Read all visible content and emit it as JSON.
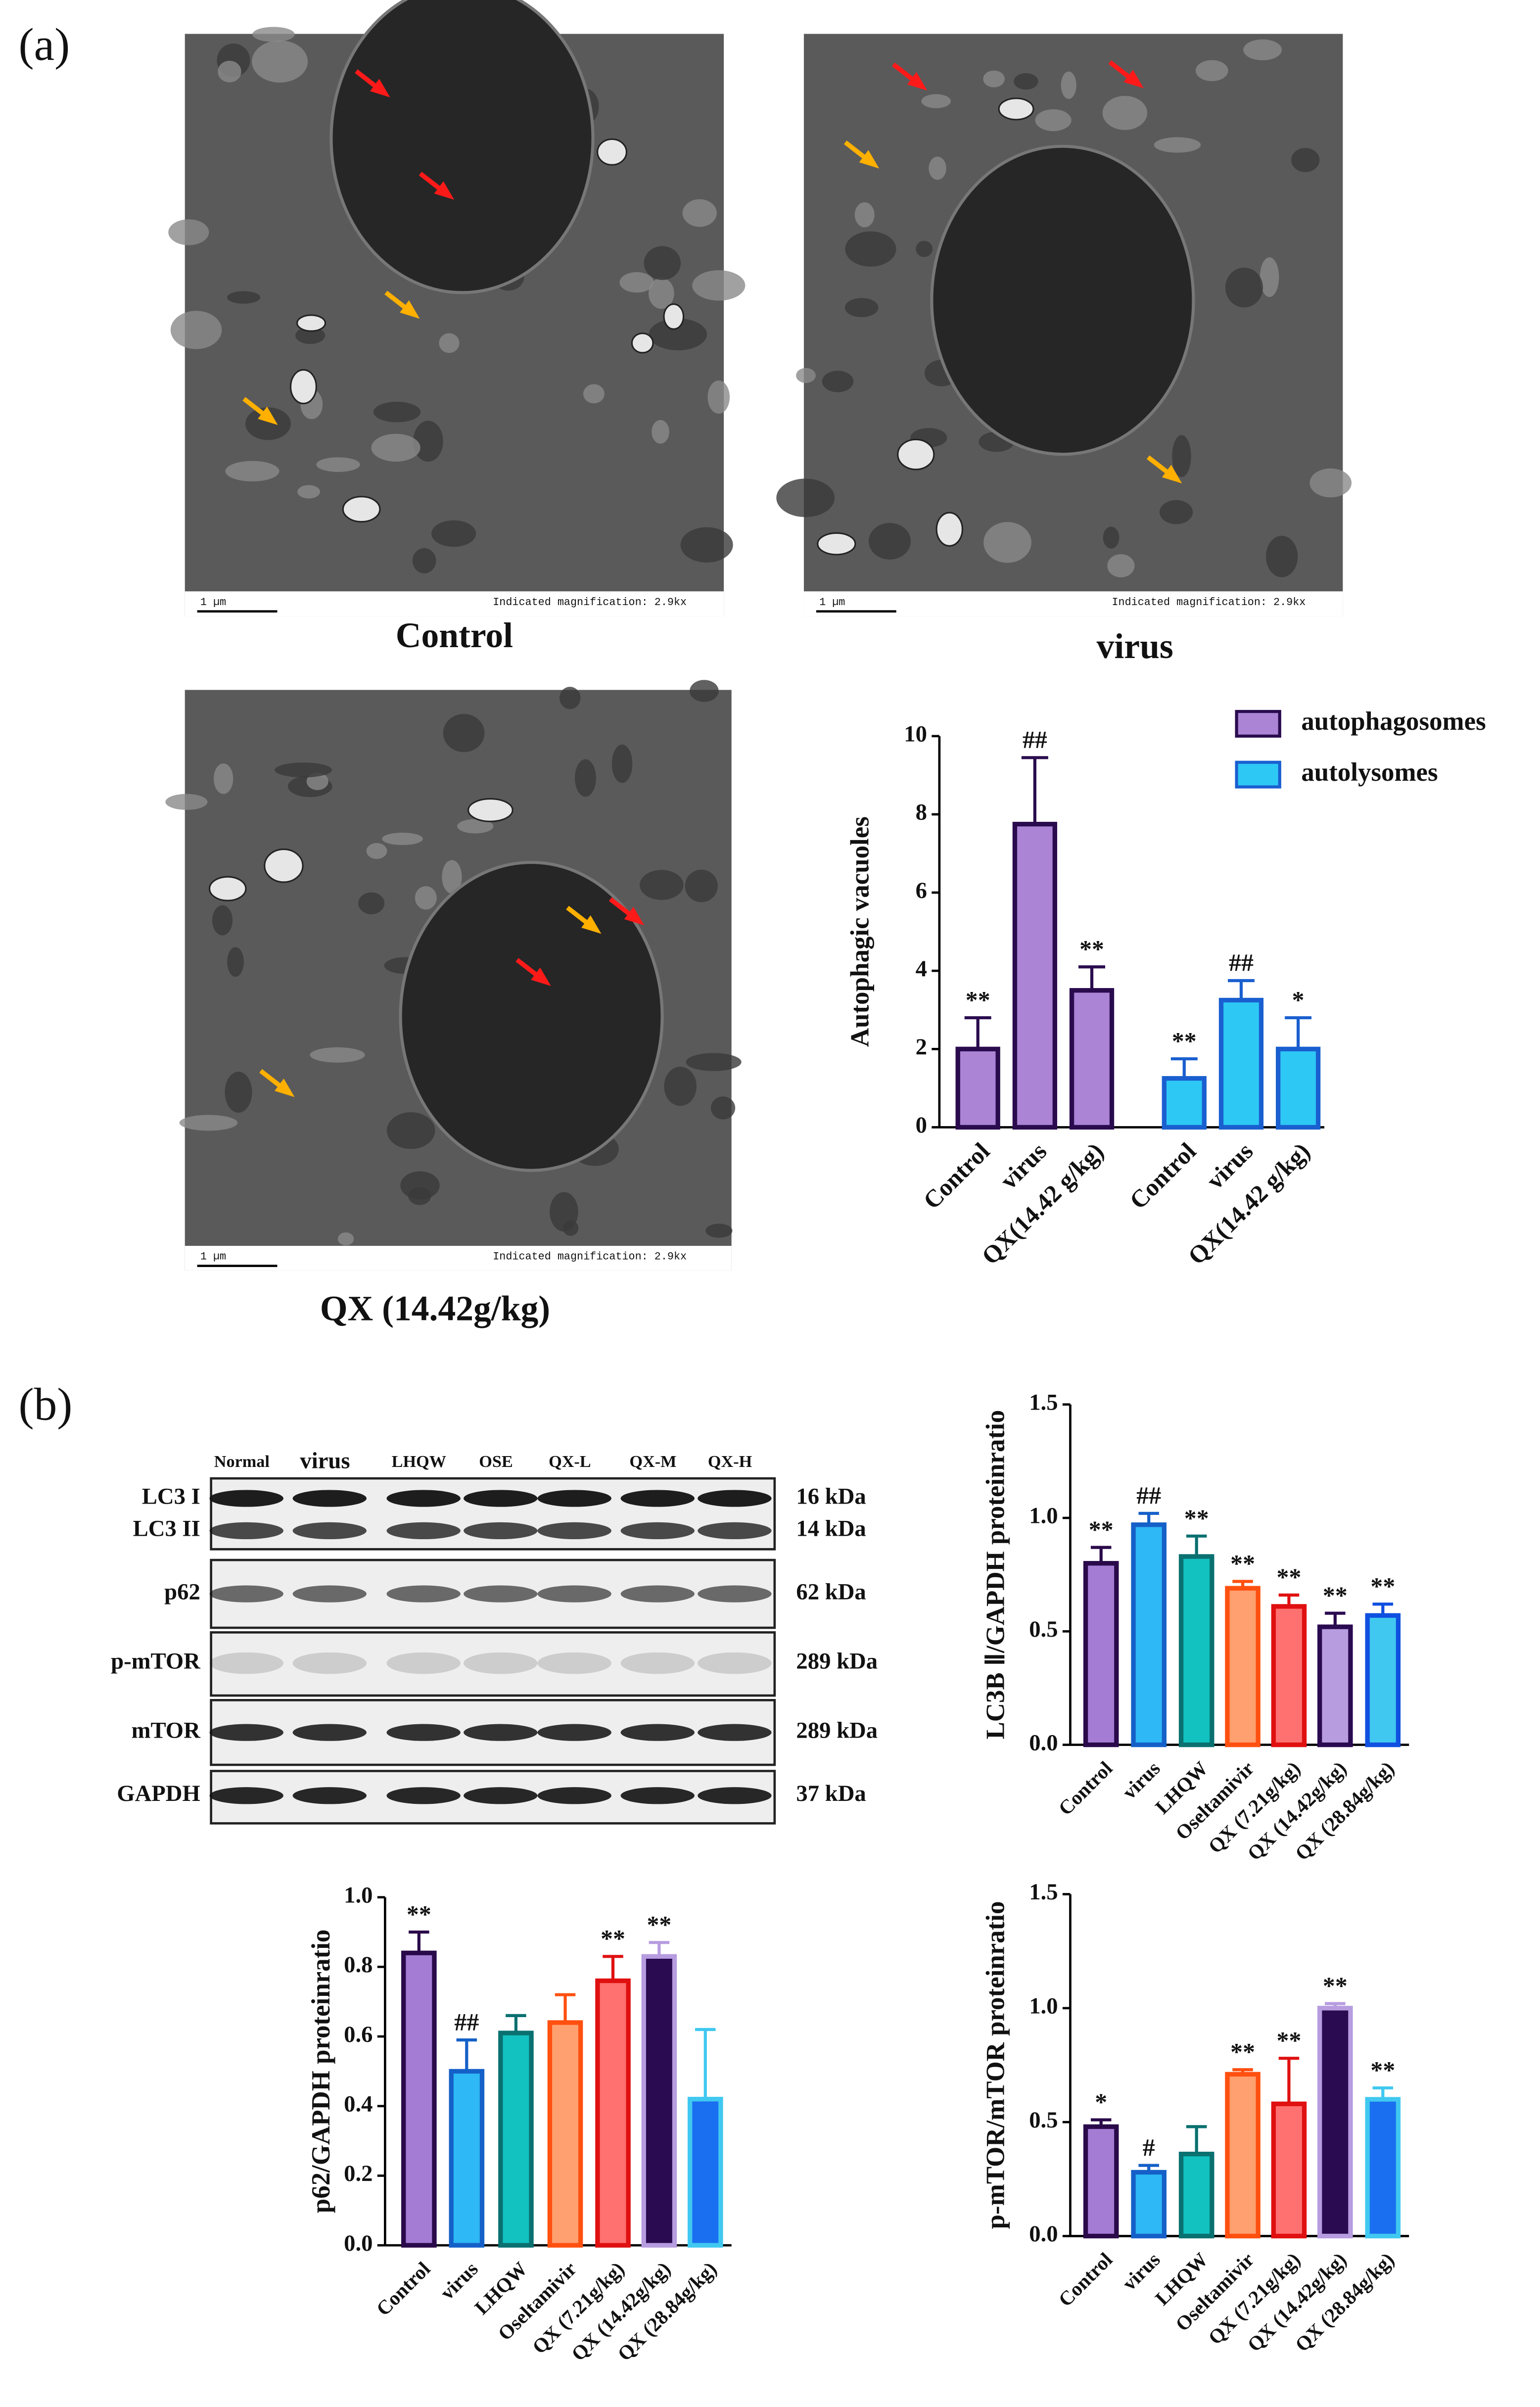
{
  "panels": {
    "a": "(a)",
    "b": "(b)"
  },
  "micrographs": [
    {
      "caption": "Control",
      "scale": "1 µm",
      "magnification": "Indicated magnification: 2.9kx"
    },
    {
      "caption": "virus",
      "scale": "1 µm",
      "magnification": "Indicated magnification: 2.9kx"
    },
    {
      "caption": "QX (14.42g/kg)",
      "scale": "1 µm",
      "magnification": "Indicated magnification: 2.9kx"
    }
  ],
  "blot": {
    "lanes": [
      "Normal",
      "virus",
      "LHQW",
      "OSE",
      "QX-L",
      "QX-M",
      "QX-H"
    ],
    "rows": [
      "LC3 I",
      "LC3 II",
      "p62",
      "p-mTOR",
      "mTOR",
      "GAPDH"
    ],
    "sizes": [
      "16 kDa",
      "14 kDa",
      "62 kDa",
      "289 kDa",
      "289 kDa",
      "37 kDa"
    ]
  },
  "chart_data": [
    {
      "type": "bar",
      "ylabel": "Autophagic vacuoles",
      "categories": [
        "Control",
        "virus",
        "QX(14.42 g/kg)",
        "Control",
        "virus",
        "QX(14.42 g/kg)"
      ],
      "series": [
        {
          "name": "autophagosomes",
          "color": "#ab84d6",
          "edgecolor": "#2a0c4e",
          "values": [
            2,
            7.75,
            3.5,
            null,
            null,
            null
          ],
          "errors": [
            0.8,
            1.7,
            0.6,
            null,
            null,
            null
          ]
        },
        {
          "name": "autolysomes",
          "color": "#2ec8f5",
          "edgecolor": "#1a5fd0",
          "values": [
            null,
            null,
            null,
            1.25,
            3.25,
            2
          ],
          "errors": [
            null,
            null,
            null,
            0.5,
            0.5,
            0.8
          ]
        }
      ],
      "annotations": [
        "**",
        "##",
        "**",
        "**",
        "##",
        "*"
      ],
      "ylim": [
        0,
        10
      ],
      "yticks": [
        0,
        2,
        4,
        6,
        8,
        10
      ],
      "legend": "upper right"
    },
    {
      "type": "bar",
      "ylabel": "LC3B Ⅱ/GAPDH proteinratio",
      "categories": [
        "Control",
        "virus",
        "LHQW",
        "Oseltamivir",
        "QX (7.21g/kg)",
        "QX (14.42g/kg)",
        "QX (28.84g/kg)"
      ],
      "series": [
        {
          "values": [
            0.8,
            0.97,
            0.83,
            0.69,
            0.61,
            0.52,
            0.57
          ],
          "errors": [
            0.07,
            0.05,
            0.09,
            0.03,
            0.05,
            0.06,
            0.05
          ],
          "colors": [
            "#a57cd4",
            "#2eb8f5",
            "#12c2c0",
            "#ffa070",
            "#ff7070",
            "#b79ce0",
            "#40c8f0"
          ],
          "edgecolors": [
            "#2a0a4a",
            "#1560c8",
            "#0a7070",
            "#ff5010",
            "#e01010",
            "#2a0a50",
            "#1050e0"
          ]
        }
      ],
      "annotations": [
        "**",
        "##",
        "**",
        "**",
        "**",
        "**",
        "**"
      ],
      "ylim": [
        0,
        1.5
      ],
      "yticks": [
        {
          "value": 0,
          "label": "0.0"
        },
        0.5,
        {
          "value": 1,
          "label": "1.0"
        },
        1.5
      ]
    },
    {
      "type": "bar",
      "ylabel": "p62/GAPDH proteinratio",
      "categories": [
        "Control",
        "virus",
        "LHQW",
        "Oseltamivir",
        "QX (7.21g/kg)",
        "QX (14.42g/kg)",
        "QX (28.84g/kg)"
      ],
      "series": [
        {
          "values": [
            0.84,
            0.5,
            0.61,
            0.64,
            0.76,
            0.83,
            0.42
          ],
          "errors": [
            0.06,
            0.09,
            0.05,
            0.08,
            0.07,
            0.04,
            0.2
          ],
          "colors": [
            "#a57cd4",
            "#2eb8f5",
            "#12c2c0",
            "#ffa070",
            "#ff7070",
            "#2a0a50",
            "#1a6ff0"
          ],
          "edgecolors": [
            "#2a0a4a",
            "#1560c8",
            "#0a7070",
            "#ff5010",
            "#e01010",
            "#b79ce0",
            "#40c8f0"
          ]
        }
      ],
      "annotations": [
        "**",
        "##",
        null,
        null,
        "**",
        "**",
        null
      ],
      "ylim": [
        0,
        1
      ],
      "yticks": [
        {
          "value": 0,
          "label": "0.0"
        },
        0.2,
        0.4,
        0.6,
        0.8,
        {
          "value": 1,
          "label": "1.0"
        }
      ]
    },
    {
      "type": "bar",
      "ylabel": "p-mTOR/mTOR proteinratio",
      "categories": [
        "Control",
        "virus",
        "LHQW",
        "Oseltamivir",
        "QX (7.21g/kg)",
        "QX (14.42g/kg)",
        "QX (28.84g/kg)"
      ],
      "series": [
        {
          "values": [
            0.48,
            0.28,
            0.36,
            0.71,
            0.58,
            1,
            0.6
          ],
          "errors": [
            0.03,
            0.03,
            0.12,
            0.02,
            0.2,
            0.02,
            0.05
          ],
          "colors": [
            "#a57cd4",
            "#2eb8f5",
            "#12c2c0",
            "#ffa070",
            "#ff7070",
            "#2a0a50",
            "#1a6ff0"
          ],
          "edgecolors": [
            "#2a0a4a",
            "#1560c8",
            "#0a7070",
            "#ff5010",
            "#e01010",
            "#b79ce0",
            "#40c8f0"
          ]
        }
      ],
      "annotations": [
        "*",
        "#",
        null,
        "**",
        "**",
        "**",
        "**"
      ],
      "ylim": [
        0,
        1.5
      ],
      "yticks": [
        {
          "value": 0,
          "label": "0.0"
        },
        0.5,
        {
          "value": 1,
          "label": "1.0"
        },
        1.5
      ]
    }
  ]
}
